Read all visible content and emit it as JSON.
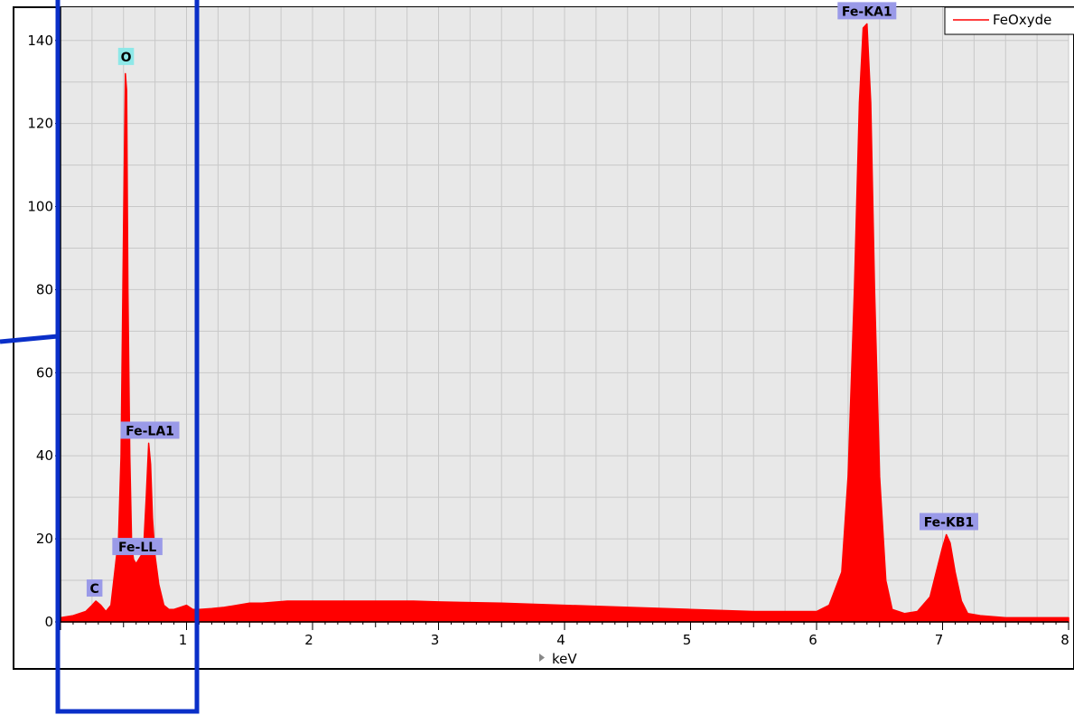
{
  "chart_data": {
    "type": "area",
    "xlabel": "keV",
    "ylabel": "",
    "xlim": [
      0,
      8
    ],
    "ylim": [
      0,
      148
    ],
    "x_ticks": [
      1,
      2,
      3,
      4,
      5,
      6,
      7,
      8
    ],
    "y_ticks": [
      0,
      20,
      40,
      60,
      80,
      100,
      120,
      140
    ],
    "grid": true,
    "legend_position": "top-right",
    "colors": {
      "spectrum": "#ff0000",
      "plot_bg": "#e8e8e8",
      "grid": "#c8c8c8",
      "peak_label_bg": "#9a9ae8",
      "peak_label_bg_o": "#8ee8e8",
      "highlight_box": "#0a2fc8"
    },
    "series": [
      {
        "name": "FeOxyde",
        "x": [
          0.0,
          0.1,
          0.2,
          0.25,
          0.28,
          0.32,
          0.36,
          0.4,
          0.43,
          0.46,
          0.48,
          0.5,
          0.515,
          0.525,
          0.535,
          0.55,
          0.565,
          0.58,
          0.6,
          0.62,
          0.64,
          0.66,
          0.68,
          0.7,
          0.715,
          0.73,
          0.75,
          0.78,
          0.82,
          0.86,
          0.9,
          0.95,
          1.0,
          1.05,
          1.1,
          1.2,
          1.3,
          1.4,
          1.5,
          1.6,
          1.8,
          2.0,
          2.2,
          2.5,
          2.8,
          3.0,
          3.5,
          4.0,
          4.5,
          5.0,
          5.5,
          6.0,
          6.1,
          6.2,
          6.25,
          6.3,
          6.34,
          6.37,
          6.4,
          6.43,
          6.46,
          6.5,
          6.55,
          6.6,
          6.7,
          6.8,
          6.9,
          6.95,
          7.0,
          7.03,
          7.06,
          7.1,
          7.15,
          7.2,
          7.3,
          7.5,
          8.0
        ],
        "y": [
          1,
          1.5,
          2.5,
          4,
          5,
          4,
          2.5,
          4,
          12,
          20,
          40,
          95,
          132,
          128,
          80,
          40,
          18,
          15,
          14,
          15,
          16,
          18,
          30,
          43,
          38,
          25,
          16,
          9,
          4,
          3,
          3,
          3.5,
          4,
          3,
          3,
          3.2,
          3.5,
          4,
          4.5,
          4.5,
          5,
          5,
          5,
          5,
          5,
          4.8,
          4.5,
          4,
          3.5,
          3,
          2.5,
          2.5,
          4,
          12,
          35,
          80,
          125,
          143,
          144,
          125,
          80,
          35,
          10,
          3,
          2,
          2.5,
          6,
          12,
          18,
          21,
          19,
          12,
          5,
          2,
          1.5,
          1,
          1
        ]
      }
    ],
    "annotations": [
      {
        "label": "O",
        "x": 0.52,
        "y": 133,
        "style": "cyan"
      },
      {
        "label": "Fe-LA1",
        "x": 0.71,
        "y": 43,
        "style": "blue"
      },
      {
        "label": "Fe-LL",
        "x": 0.61,
        "y": 15,
        "style": "blue"
      },
      {
        "label": "C",
        "x": 0.27,
        "y": 5,
        "style": "blue"
      },
      {
        "label": "Fe-KA1",
        "x": 6.4,
        "y": 144,
        "style": "blue"
      },
      {
        "label": "Fe-KB1",
        "x": 7.05,
        "y": 21,
        "style": "blue"
      }
    ]
  }
}
